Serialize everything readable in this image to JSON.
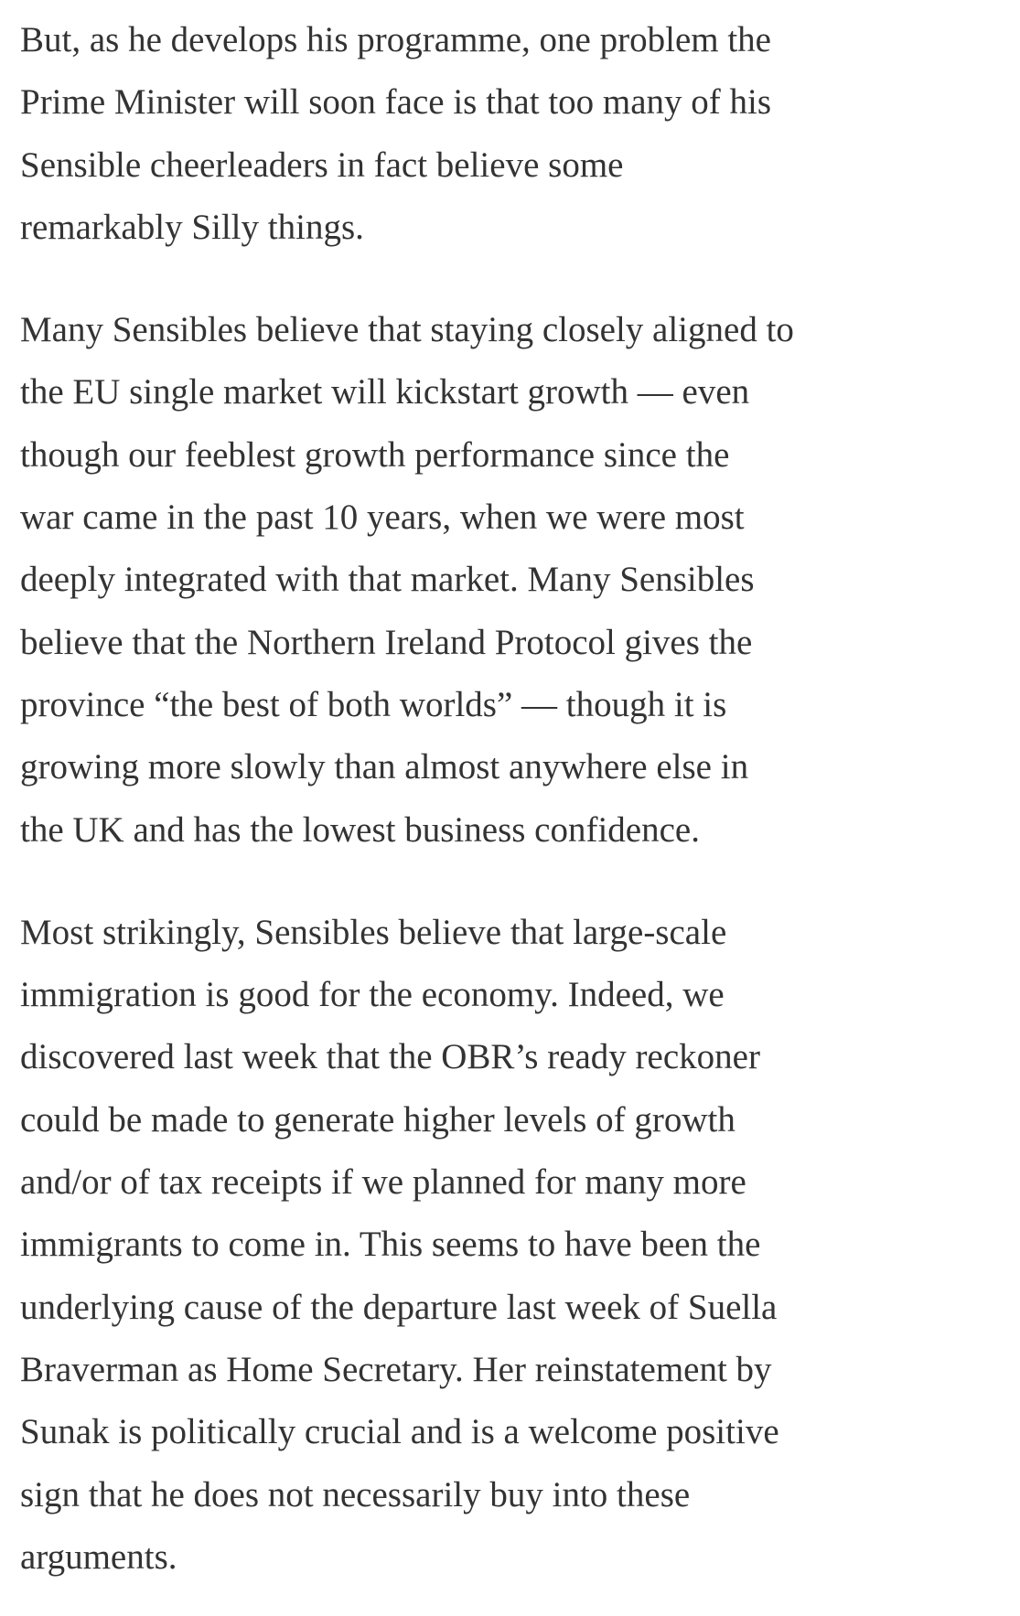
{
  "article": {
    "paragraphs": [
      [
        "But, as he develops his programme, one problem the",
        "Prime Minister will soon face is that too many of his",
        "Sensible cheerleaders in fact believe some",
        "remarkably Silly things."
      ],
      [
        "Many Sensibles believe that staying closely aligned to",
        "the EU single market will kickstart growth — even",
        "though our feeblest growth performance since the",
        "war came in the past 10 years, when we were most",
        "deeply integrated with that market. Many Sensibles",
        "believe that the Northern Ireland Protocol gives the",
        "province “the best of both worlds” — though it is",
        "growing more slowly than almost anywhere else in",
        "the UK and has the lowest business confidence."
      ],
      [
        "Most strikingly, Sensibles believe that large-scale",
        "immigration is good for the economy. Indeed, we",
        "discovered last week that the OBR’s ready reckoner",
        "could be made to generate higher levels of growth",
        "and/or of tax receipts if we planned for many more",
        "immigrants to come in. This seems to have been the",
        "underlying cause of the departure last week of Suella",
        "Braverman as Home Secretary. Her reinstatement by",
        "Sunak is politically crucial and is a welcome positive",
        "sign that he does not necessarily buy into these",
        "arguments."
      ]
    ]
  }
}
